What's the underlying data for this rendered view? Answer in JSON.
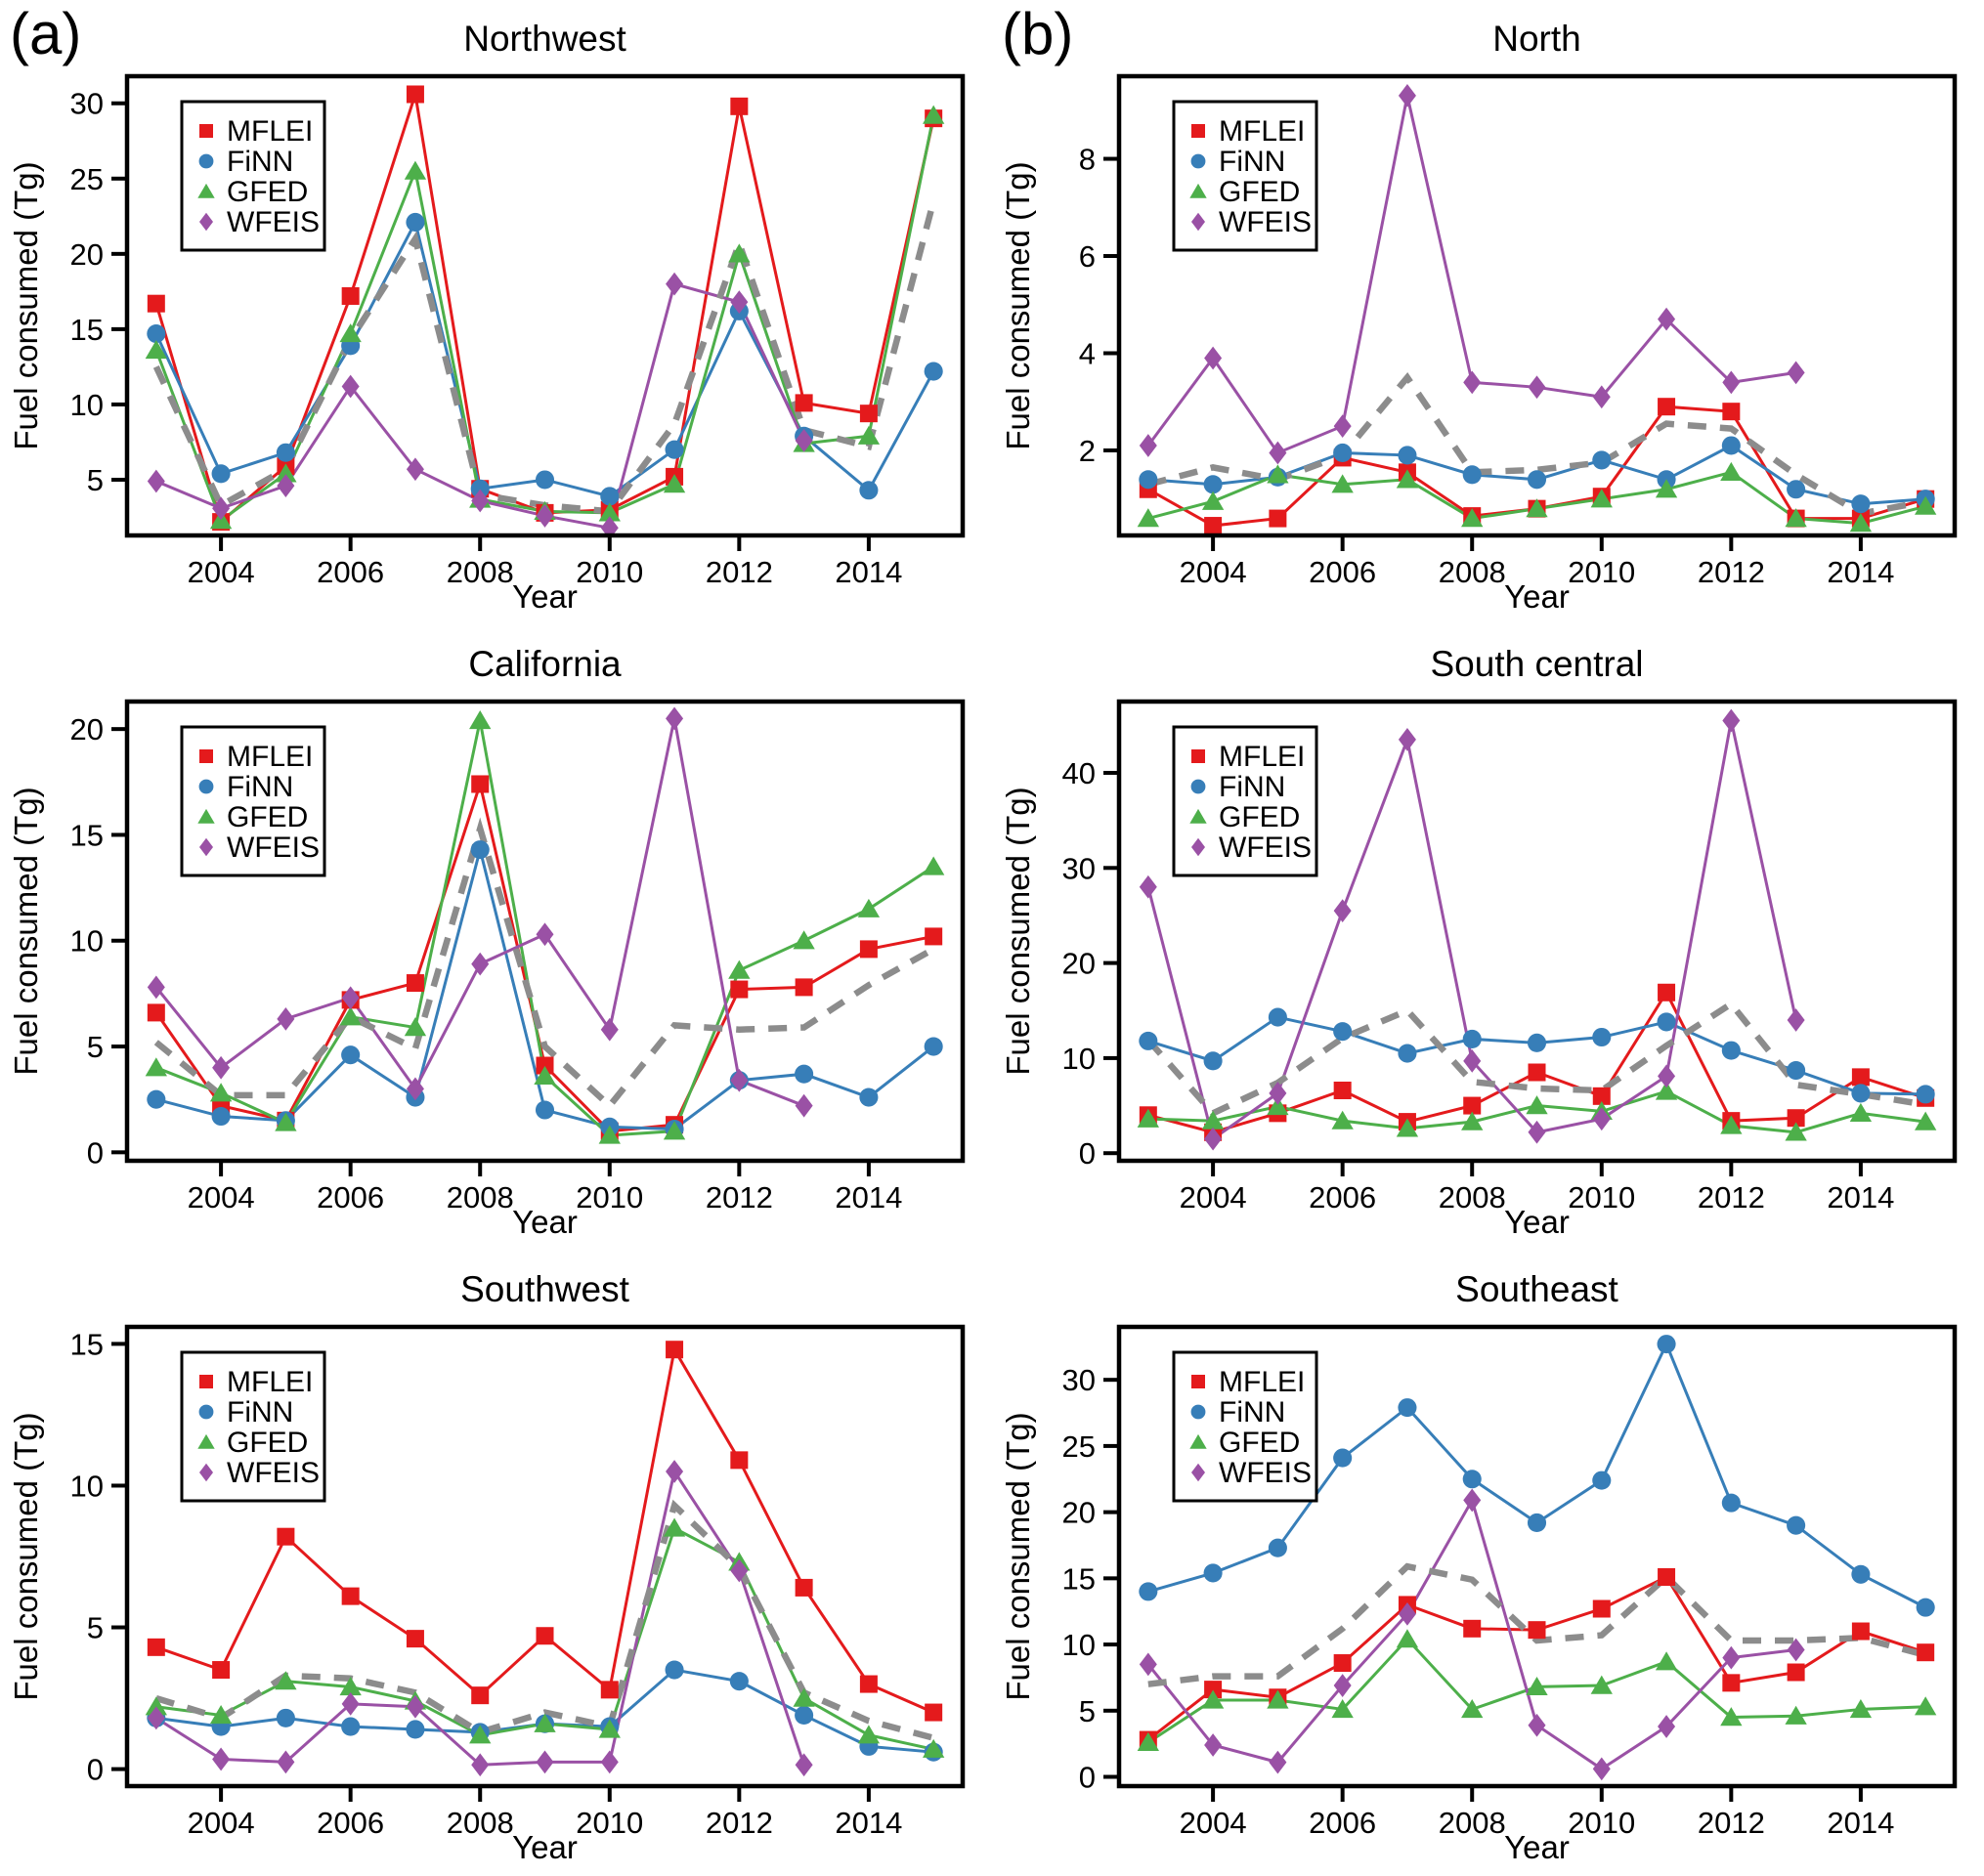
{
  "figure": {
    "panel_labels": [
      "(a)",
      "(b)"
    ],
    "x_axis_label": "Year",
    "y_axis_label": "Fuel consumed (Tg)",
    "legend_entries": [
      "MFLEI",
      "FiNN",
      "GFED",
      "WFEIS"
    ],
    "colors": {
      "MFLEI": "#e41a1c",
      "FiNN": "#377eb8",
      "GFED": "#4daf4a",
      "WFEIS": "#9a51a5",
      "mean_dashed_line": "#8c8c8c",
      "axis": "#000000",
      "background": "#ffffff"
    }
  },
  "chart_data": [
    {
      "type": "line",
      "title": "Northwest",
      "panel": "a",
      "xlabel": "Year",
      "ylabel": "Fuel consumed (Tg)",
      "x": [
        2003,
        2004,
        2005,
        2006,
        2007,
        2008,
        2009,
        2010,
        2011,
        2012,
        2013,
        2014,
        2015
      ],
      "xticks": [
        2004,
        2006,
        2008,
        2010,
        2012,
        2014
      ],
      "yticks": [
        5,
        10,
        15,
        20,
        25,
        30
      ],
      "xlim": [
        2002.55,
        2015.45
      ],
      "ylim": [
        1.3,
        31.8
      ],
      "grid": false,
      "legend_position": "upper-left",
      "series": [
        {
          "name": "MFLEI",
          "marker": "square",
          "color": "#e41a1c",
          "dashed": false,
          "values": [
            16.7,
            2.2,
            5.9,
            17.2,
            30.6,
            4.4,
            2.8,
            3.0,
            5.2,
            29.8,
            10.1,
            9.4,
            29.0
          ]
        },
        {
          "name": "FiNN",
          "marker": "circle",
          "color": "#377eb8",
          "dashed": false,
          "values": [
            14.7,
            5.4,
            6.8,
            13.9,
            22.1,
            4.4,
            5.0,
            3.9,
            7.0,
            16.2,
            7.9,
            4.3,
            12.2
          ]
        },
        {
          "name": "GFED",
          "marker": "triangle",
          "color": "#4daf4a",
          "dashed": false,
          "values": [
            13.6,
            2.3,
            5.4,
            14.7,
            25.5,
            3.7,
            2.9,
            2.8,
            4.7,
            20.0,
            7.4,
            7.9,
            29.2
          ]
        },
        {
          "name": "WFEIS",
          "marker": "diamond",
          "color": "#9a51a5",
          "dashed": false,
          "values": [
            4.9,
            3.1,
            4.6,
            11.2,
            5.7,
            3.6,
            2.6,
            1.8,
            18.0,
            16.8,
            7.6,
            null,
            null
          ]
        },
        {
          "name": "Mean",
          "marker": "none",
          "color": "#8c8c8c",
          "dashed": true,
          "values": [
            12.5,
            3.3,
            5.7,
            14.3,
            21.0,
            4.0,
            3.3,
            2.9,
            8.7,
            20.7,
            8.3,
            7.2,
            23.5
          ]
        }
      ]
    },
    {
      "type": "line",
      "title": "North",
      "panel": "b",
      "xlabel": "Year",
      "ylabel": "Fuel consumed (Tg)",
      "x": [
        2003,
        2004,
        2005,
        2006,
        2007,
        2008,
        2009,
        2010,
        2011,
        2012,
        2013,
        2014,
        2015
      ],
      "xticks": [
        2004,
        2006,
        2008,
        2010,
        2012,
        2014
      ],
      "yticks": [
        2,
        4,
        6,
        8
      ],
      "xlim": [
        2002.55,
        2015.45
      ],
      "ylim": [
        0.25,
        9.7
      ],
      "grid": false,
      "legend_position": "upper-left",
      "series": [
        {
          "name": "MFLEI",
          "marker": "square",
          "color": "#e41a1c",
          "dashed": false,
          "values": [
            1.2,
            0.45,
            0.6,
            1.85,
            1.55,
            0.65,
            0.8,
            1.05,
            2.9,
            2.8,
            0.6,
            0.6,
            1.0
          ]
        },
        {
          "name": "FiNN",
          "marker": "circle",
          "color": "#377eb8",
          "dashed": false,
          "values": [
            1.4,
            1.3,
            1.45,
            1.95,
            1.9,
            1.5,
            1.4,
            1.8,
            1.4,
            2.1,
            1.2,
            0.9,
            1.0
          ]
        },
        {
          "name": "GFED",
          "marker": "triangle",
          "color": "#4daf4a",
          "dashed": false,
          "values": [
            0.6,
            0.95,
            1.5,
            1.3,
            1.4,
            0.6,
            0.8,
            1.0,
            1.2,
            1.55,
            0.6,
            0.5,
            0.85
          ]
        },
        {
          "name": "WFEIS",
          "marker": "diamond",
          "color": "#9a51a5",
          "dashed": false,
          "values": [
            2.1,
            3.9,
            1.95,
            2.5,
            9.3,
            3.4,
            3.3,
            3.1,
            4.7,
            3.4,
            3.6,
            null,
            null
          ]
        },
        {
          "name": "Mean",
          "marker": "none",
          "color": "#8c8c8c",
          "dashed": true,
          "values": [
            1.3,
            1.65,
            1.4,
            1.9,
            3.5,
            1.55,
            1.6,
            1.75,
            2.55,
            2.45,
            1.5,
            0.7,
            0.95
          ]
        }
      ]
    },
    {
      "type": "line",
      "title": "California",
      "panel": "a",
      "xlabel": "Year",
      "ylabel": "Fuel consumed (Tg)",
      "x": [
        2003,
        2004,
        2005,
        2006,
        2007,
        2008,
        2009,
        2010,
        2011,
        2012,
        2013,
        2014,
        2015
      ],
      "xticks": [
        2004,
        2006,
        2008,
        2010,
        2012,
        2014
      ],
      "yticks": [
        0,
        5,
        10,
        15,
        20
      ],
      "xlim": [
        2002.55,
        2015.45
      ],
      "ylim": [
        -0.4,
        21.3
      ],
      "grid": false,
      "legend_position": "upper-left",
      "series": [
        {
          "name": "MFLEI",
          "marker": "square",
          "color": "#e41a1c",
          "dashed": false,
          "values": [
            6.6,
            2.2,
            1.5,
            7.2,
            8.0,
            17.4,
            4.1,
            1.0,
            1.3,
            7.7,
            7.8,
            9.6,
            10.2
          ]
        },
        {
          "name": "FiNN",
          "marker": "circle",
          "color": "#377eb8",
          "dashed": false,
          "values": [
            2.5,
            1.7,
            1.5,
            4.6,
            2.6,
            14.3,
            2.0,
            1.2,
            1.1,
            3.4,
            3.7,
            2.6,
            5.0
          ]
        },
        {
          "name": "GFED",
          "marker": "triangle",
          "color": "#4daf4a",
          "dashed": false,
          "values": [
            4.0,
            2.8,
            1.4,
            6.4,
            5.9,
            20.4,
            3.6,
            0.8,
            1.0,
            8.6,
            10.0,
            11.5,
            13.5
          ]
        },
        {
          "name": "WFEIS",
          "marker": "diamond",
          "color": "#9a51a5",
          "dashed": false,
          "values": [
            7.8,
            4.0,
            6.3,
            7.3,
            3.0,
            8.9,
            10.3,
            5.8,
            20.5,
            3.4,
            2.2,
            null,
            null
          ]
        },
        {
          "name": "Mean",
          "marker": "none",
          "color": "#8c8c8c",
          "dashed": true,
          "values": [
            5.2,
            2.7,
            2.7,
            6.4,
            4.9,
            15.3,
            5.0,
            2.2,
            6.0,
            5.8,
            5.9,
            7.9,
            9.6
          ]
        }
      ]
    },
    {
      "type": "line",
      "title": "South central",
      "panel": "b",
      "xlabel": "Year",
      "ylabel": "Fuel consumed (Tg)",
      "x": [
        2003,
        2004,
        2005,
        2006,
        2007,
        2008,
        2009,
        2010,
        2011,
        2012,
        2013,
        2014,
        2015
      ],
      "xticks": [
        2004,
        2006,
        2008,
        2010,
        2012,
        2014
      ],
      "yticks": [
        0,
        10,
        20,
        30,
        40
      ],
      "xlim": [
        2002.55,
        2015.45
      ],
      "ylim": [
        -0.8,
        47.5
      ],
      "grid": false,
      "legend_position": "upper-left",
      "series": [
        {
          "name": "MFLEI",
          "marker": "square",
          "color": "#e41a1c",
          "dashed": false,
          "values": [
            4.0,
            2.2,
            4.2,
            6.6,
            3.3,
            5.0,
            8.5,
            6.0,
            16.9,
            3.4,
            3.7,
            8.0,
            5.8
          ]
        },
        {
          "name": "FiNN",
          "marker": "circle",
          "color": "#377eb8",
          "dashed": false,
          "values": [
            11.8,
            9.7,
            14.3,
            12.8,
            10.5,
            12.0,
            11.6,
            12.2,
            13.8,
            10.8,
            8.7,
            6.3,
            6.2
          ]
        },
        {
          "name": "GFED",
          "marker": "triangle",
          "color": "#4daf4a",
          "dashed": false,
          "values": [
            3.6,
            3.4,
            4.9,
            3.4,
            2.6,
            3.3,
            5.0,
            4.4,
            6.5,
            2.9,
            2.2,
            4.2,
            3.3
          ]
        },
        {
          "name": "WFEIS",
          "marker": "diamond",
          "color": "#9a51a5",
          "dashed": false,
          "values": [
            28.0,
            1.5,
            6.3,
            25.5,
            43.5,
            9.7,
            2.2,
            3.6,
            8.1,
            45.5,
            14.0,
            null,
            null
          ]
        },
        {
          "name": "Mean",
          "marker": "none",
          "color": "#8c8c8c",
          "dashed": true,
          "values": [
            11.9,
            4.2,
            7.4,
            12.1,
            15.0,
            7.5,
            6.8,
            6.6,
            11.3,
            15.7,
            7.2,
            6.2,
            5.1
          ]
        }
      ]
    },
    {
      "type": "line",
      "title": "Southwest",
      "panel": "a",
      "xlabel": "Year",
      "ylabel": "Fuel consumed (Tg)",
      "x": [
        2003,
        2004,
        2005,
        2006,
        2007,
        2008,
        2009,
        2010,
        2011,
        2012,
        2013,
        2014,
        2015
      ],
      "xticks": [
        2004,
        2006,
        2008,
        2010,
        2012,
        2014
      ],
      "yticks": [
        0,
        5,
        10,
        15
      ],
      "xlim": [
        2002.55,
        2015.45
      ],
      "ylim": [
        -0.6,
        15.6
      ],
      "grid": false,
      "legend_position": "upper-left",
      "series": [
        {
          "name": "MFLEI",
          "marker": "square",
          "color": "#e41a1c",
          "dashed": false,
          "values": [
            4.3,
            3.5,
            8.2,
            6.1,
            4.6,
            2.6,
            4.7,
            2.8,
            14.8,
            10.9,
            6.4,
            3.0,
            2.0
          ]
        },
        {
          "name": "FiNN",
          "marker": "circle",
          "color": "#377eb8",
          "dashed": false,
          "values": [
            1.8,
            1.5,
            1.8,
            1.5,
            1.4,
            1.3,
            1.6,
            1.5,
            3.5,
            3.1,
            1.9,
            0.8,
            0.6
          ]
        },
        {
          "name": "GFED",
          "marker": "triangle",
          "color": "#4daf4a",
          "dashed": false,
          "values": [
            2.2,
            1.9,
            3.1,
            2.9,
            2.4,
            1.2,
            1.6,
            1.4,
            8.5,
            7.3,
            2.5,
            1.2,
            0.7
          ]
        },
        {
          "name": "WFEIS",
          "marker": "diamond",
          "color": "#9a51a5",
          "dashed": false,
          "values": [
            1.8,
            0.35,
            0.25,
            2.3,
            2.2,
            0.15,
            0.25,
            0.25,
            10.5,
            7.0,
            0.15,
            null,
            null
          ]
        },
        {
          "name": "Mean",
          "marker": "none",
          "color": "#8c8c8c",
          "dashed": true,
          "values": [
            2.5,
            1.8,
            3.3,
            3.2,
            2.7,
            1.3,
            2.0,
            1.5,
            9.3,
            7.1,
            2.7,
            1.7,
            1.1
          ]
        }
      ]
    },
    {
      "type": "line",
      "title": "Southeast",
      "panel": "b",
      "xlabel": "Year",
      "ylabel": "Fuel consumed (Tg)",
      "x": [
        2003,
        2004,
        2005,
        2006,
        2007,
        2008,
        2009,
        2010,
        2011,
        2012,
        2013,
        2014,
        2015
      ],
      "xticks": [
        2004,
        2006,
        2008,
        2010,
        2012,
        2014
      ],
      "yticks": [
        0,
        5,
        10,
        15,
        20,
        25,
        30
      ],
      "xlim": [
        2002.55,
        2015.45
      ],
      "ylim": [
        -0.7,
        34.0
      ],
      "grid": false,
      "legend_position": "upper-left",
      "series": [
        {
          "name": "MFLEI",
          "marker": "square",
          "color": "#e41a1c",
          "dashed": false,
          "values": [
            2.8,
            6.6,
            6.0,
            8.6,
            13.0,
            11.2,
            11.1,
            12.7,
            15.1,
            7.1,
            7.9,
            11.0,
            9.4
          ]
        },
        {
          "name": "FiNN",
          "marker": "circle",
          "color": "#377eb8",
          "dashed": false,
          "values": [
            14.0,
            15.4,
            17.3,
            24.1,
            27.9,
            22.5,
            19.2,
            22.4,
            32.7,
            20.7,
            19.0,
            15.3,
            12.8
          ]
        },
        {
          "name": "GFED",
          "marker": "triangle",
          "color": "#4daf4a",
          "dashed": false,
          "values": [
            2.6,
            5.8,
            5.8,
            5.1,
            10.4,
            5.1,
            6.8,
            6.9,
            8.7,
            4.5,
            4.6,
            5.1,
            5.3
          ]
        },
        {
          "name": "WFEIS",
          "marker": "diamond",
          "color": "#9a51a5",
          "dashed": false,
          "values": [
            8.5,
            2.4,
            1.1,
            6.9,
            12.3,
            20.9,
            3.9,
            0.6,
            3.8,
            9.0,
            9.6,
            null,
            null
          ]
        },
        {
          "name": "Mean",
          "marker": "none",
          "color": "#8c8c8c",
          "dashed": true,
          "values": [
            7.0,
            7.6,
            7.6,
            11.2,
            15.9,
            14.9,
            10.3,
            10.7,
            15.1,
            10.3,
            10.3,
            10.5,
            9.2
          ]
        }
      ]
    }
  ]
}
